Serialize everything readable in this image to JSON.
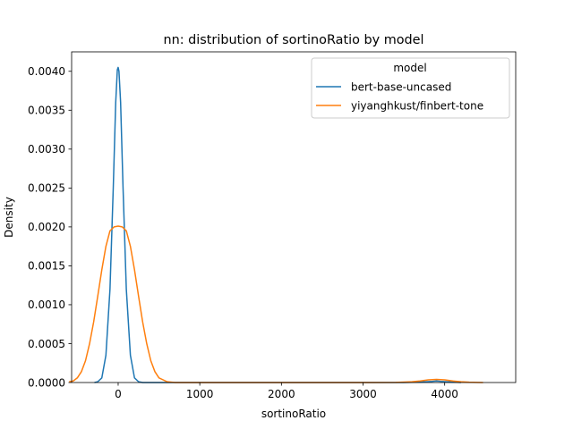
{
  "chart_data": {
    "type": "line",
    "title": "nn: distribution of sortinoRatio by model",
    "xlabel": "sortinoRatio",
    "ylabel": "Density",
    "xlim": [
      -570,
      4870
    ],
    "ylim": [
      0,
      0.00425
    ],
    "xticks": [
      0,
      1000,
      2000,
      3000,
      4000
    ],
    "yticks": [
      0.0,
      0.0005,
      0.001,
      0.0015,
      0.002,
      0.0025,
      0.003,
      0.0035,
      0.004
    ],
    "ytick_labels": [
      "0.0000",
      "0.0005",
      "0.0010",
      "0.0015",
      "0.0020",
      "0.0025",
      "0.0030",
      "0.0035",
      "0.0040"
    ],
    "grid": false,
    "legend": {
      "title": "model",
      "placement": "top-right"
    },
    "series": [
      {
        "name": "bert-base-uncased",
        "color": "#1f77b4",
        "x": [
          -290,
          -250,
          -200,
          -150,
          -100,
          -60,
          -30,
          -10,
          0,
          10,
          30,
          60,
          100,
          150,
          200,
          250,
          300,
          500,
          1000,
          2000,
          3000,
          3500,
          3700,
          3850,
          3900,
          3950,
          4100,
          4200
        ],
        "y": [
          0.0,
          1e-05,
          6e-05,
          0.00035,
          0.0012,
          0.0025,
          0.0036,
          0.00402,
          0.00405,
          0.004,
          0.0036,
          0.0025,
          0.0012,
          0.00035,
          6e-05,
          1e-05,
          0.0,
          0.0,
          0.0,
          0.0,
          0.0,
          0.0,
          5e-06,
          1.5e-05,
          2e-05,
          1.5e-05,
          5e-06,
          0.0
        ]
      },
      {
        "name": "yiyanghkust/finbert-tone",
        "color": "#ff7f0e",
        "x": [
          -600,
          -550,
          -500,
          -450,
          -400,
          -350,
          -300,
          -250,
          -200,
          -150,
          -100,
          -50,
          0,
          50,
          100,
          150,
          200,
          250,
          300,
          350,
          400,
          450,
          500,
          600,
          700,
          1000,
          2000,
          3000,
          3400,
          3600,
          3700,
          3800,
          3900,
          4000,
          4100,
          4200,
          4300,
          4400,
          4470
        ],
        "y": [
          1e-05,
          2e-05,
          6e-05,
          0.00014,
          0.00028,
          0.0005,
          0.00078,
          0.00111,
          0.00145,
          0.00175,
          0.00195,
          0.002,
          0.00201,
          0.002,
          0.00195,
          0.00175,
          0.00145,
          0.00111,
          0.00078,
          0.0005,
          0.00028,
          0.00014,
          6e-05,
          1e-05,
          0.0,
          0.0,
          0.0,
          0.0,
          2e-06,
          1e-05,
          2e-05,
          3.5e-05,
          4e-05,
          3.5e-05,
          2e-05,
          1e-05,
          4e-06,
          1e-06,
          0.0
        ]
      }
    ]
  }
}
